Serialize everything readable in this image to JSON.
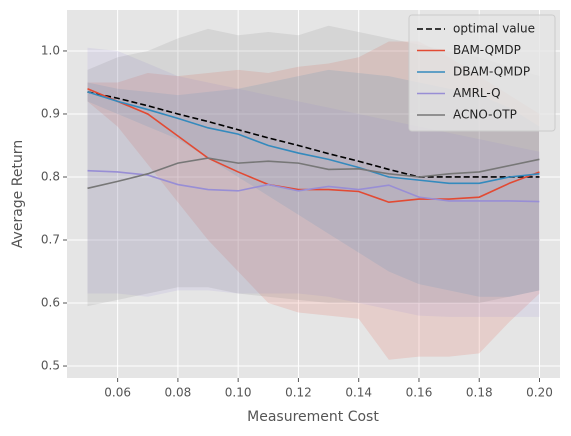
{
  "chart_data": {
    "type": "line",
    "x_label": "Measurement Cost",
    "y_label": "Average Return",
    "x": [
      0.05,
      0.06,
      0.07,
      0.08,
      0.09,
      0.1,
      0.11,
      0.12,
      0.13,
      0.14,
      0.15,
      0.16,
      0.17,
      0.18,
      0.19,
      0.2
    ],
    "xlim": [
      0.0432,
      0.2068
    ],
    "ylim": [
      0.481,
      1.065
    ],
    "xticks": [
      0.06,
      0.08,
      {
        "value": 0.1,
        "label": "0.10"
      },
      0.12,
      0.14,
      0.16,
      0.18,
      {
        "value": 0.2,
        "label": "0.20"
      }
    ],
    "yticks": [
      0.5,
      0.6,
      0.7,
      0.8,
      0.9,
      {
        "value": 1,
        "label": "1.0"
      }
    ],
    "grid": true,
    "legend": "upper right",
    "series": [
      {
        "name": "optimal value",
        "color": "#000000",
        "linestyle": "dashed",
        "values": [
          0.935,
          0.925,
          0.913,
          0.9,
          0.888,
          0.875,
          0.862,
          0.85,
          0.837,
          0.825,
          0.812,
          0.8,
          0.8,
          0.8,
          0.8,
          0.8
        ]
      },
      {
        "name": "BAM-QMDP",
        "color": "#E24A33",
        "linestyle": "solid",
        "values": [
          0.94,
          0.92,
          0.9,
          0.865,
          0.83,
          0.808,
          0.788,
          0.78,
          0.78,
          0.777,
          0.76,
          0.765,
          0.765,
          0.768,
          0.79,
          0.808
        ],
        "band_upper": [
          0.95,
          0.95,
          0.965,
          0.96,
          0.965,
          0.97,
          0.965,
          0.975,
          0.98,
          0.99,
          1.015,
          1.015,
          0.99,
          0.96,
          0.93,
          0.9
        ],
        "band_lower": [
          0.92,
          0.88,
          0.82,
          0.76,
          0.7,
          0.65,
          0.6,
          0.585,
          0.58,
          0.575,
          0.51,
          0.515,
          0.515,
          0.52,
          0.57,
          0.615
        ]
      },
      {
        "name": "DBAM-QMDP",
        "color": "#348ABD",
        "linestyle": "solid",
        "values": [
          0.935,
          0.92,
          0.907,
          0.893,
          0.878,
          0.868,
          0.85,
          0.838,
          0.828,
          0.815,
          0.8,
          0.795,
          0.79,
          0.79,
          0.8,
          0.805
        ],
        "band_upper": [
          0.95,
          0.94,
          0.935,
          0.93,
          0.935,
          0.94,
          0.95,
          0.96,
          0.97,
          0.965,
          0.96,
          0.95,
          0.94,
          0.93,
          0.91,
          0.88
        ],
        "band_lower": [
          0.92,
          0.9,
          0.88,
          0.86,
          0.83,
          0.8,
          0.77,
          0.74,
          0.71,
          0.68,
          0.65,
          0.63,
          0.62,
          0.61,
          0.61,
          0.62
        ]
      },
      {
        "name": "AMRL-Q",
        "color": "#988ED5",
        "linestyle": "solid",
        "values": [
          0.81,
          0.808,
          0.803,
          0.788,
          0.78,
          0.778,
          0.788,
          0.778,
          0.785,
          0.78,
          0.787,
          0.768,
          0.762,
          0.762,
          0.762,
          0.761
        ],
        "band_upper": [
          1.005,
          1.0,
          0.98,
          0.96,
          0.95,
          0.94,
          0.93,
          0.92,
          0.91,
          0.9,
          0.89,
          0.88,
          0.87,
          0.86,
          0.85,
          0.84
        ],
        "band_lower": [
          0.615,
          0.615,
          0.61,
          0.62,
          0.62,
          0.615,
          0.615,
          0.615,
          0.61,
          0.6,
          0.59,
          0.58,
          0.578,
          0.578,
          0.578,
          0.578
        ]
      },
      {
        "name": "ACNO-OTP",
        "color": "#777777",
        "linestyle": "solid",
        "values": [
          0.782,
          0.793,
          0.805,
          0.822,
          0.83,
          0.822,
          0.825,
          0.822,
          0.812,
          0.813,
          0.805,
          0.8,
          0.805,
          0.808,
          0.818,
          0.828
        ],
        "band_upper": [
          0.97,
          0.99,
          1.0,
          1.02,
          1.035,
          1.025,
          1.03,
          1.025,
          1.04,
          1.03,
          1.02,
          1.01,
          1.0,
          0.99,
          0.975,
          0.96
        ],
        "band_lower": [
          0.595,
          0.605,
          0.615,
          0.625,
          0.625,
          0.615,
          0.61,
          0.605,
          0.6,
          0.6,
          0.6,
          0.6,
          0.6,
          0.6,
          0.61,
          0.62
        ]
      }
    ]
  }
}
